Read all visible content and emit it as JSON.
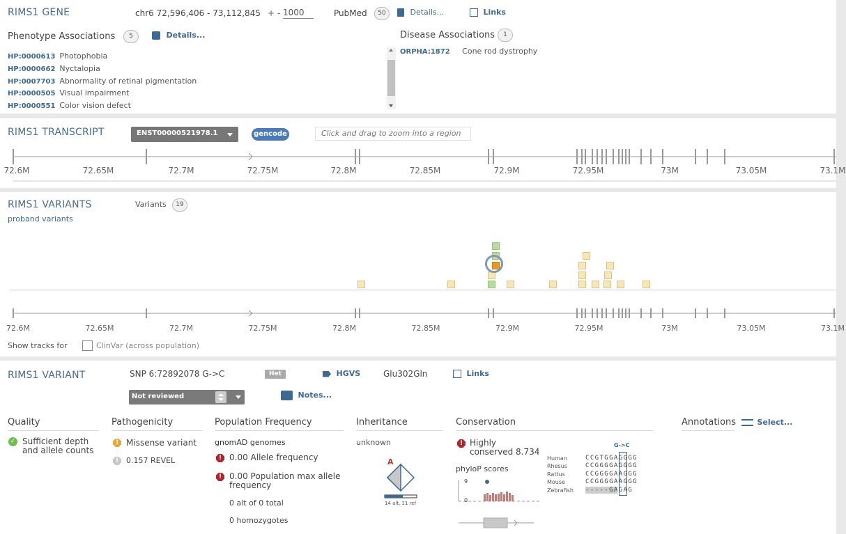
{
  "gene": {
    "title": "RIMS1 GENE",
    "region": "chr6  72,596,406 - 73,112,845",
    "pad_label": "+ -",
    "pad_value": "1000",
    "pubmed_label": "PubMed",
    "pubmed_count": "50",
    "details_label": "Details...",
    "links_label": "Links",
    "phenotype_title": "Phenotype Associations",
    "phenotype_count": "5",
    "phenotype_details": "Details...",
    "phenotypes": [
      {
        "id": "HP:0000613",
        "name": "Photophobia"
      },
      {
        "id": "HP:0000662",
        "name": "Nyctalopia"
      },
      {
        "id": "HP:0007703",
        "name": "Abnormality of retinal pigmentation"
      },
      {
        "id": "HP:0000505",
        "name": "Visual impairment"
      },
      {
        "id": "HP:0000551",
        "name": "Color vision defect"
      }
    ],
    "disease_title": "Disease Associations",
    "disease_count": "1",
    "diseases": [
      {
        "id": "ORPHA:1872",
        "name": "Cone rod dystrophy"
      }
    ]
  },
  "transcript": {
    "title": "RIMS1 TRANSCRIPT",
    "selected": "ENST00000521978.1",
    "source_badge": "gencode",
    "zoom_hint": "Click and drag to zoom into a region",
    "ticks": [
      "72.6M",
      "72.65M",
      "72.7M",
      "72.75M",
      "72.8M",
      "72.85M",
      "72.9M",
      "72.95M",
      "73M",
      "73.05M",
      "73.1M"
    ]
  },
  "variants_panel": {
    "title": "RIMS1 VARIANTS",
    "variants_label": "Variants",
    "variants_count": "19",
    "subtitle": "proband variants",
    "ticks": [
      "72.6M",
      "72.65M",
      "72.7M",
      "72.75M",
      "72.8M",
      "72.85M",
      "72.9M",
      "72.95M",
      "73M",
      "73.05M",
      "73.1M"
    ],
    "show_tracks_label": "Show tracks for",
    "clinvar_label": "ClinVar (across population)",
    "clinvar_checked": false
  },
  "variant": {
    "title": "RIMS1 VARIANT",
    "description": "SNP  6:72892078  G->C",
    "zygosity": "Het",
    "hgvs_label": "HGVS",
    "protein_change": "Glu302Gln",
    "links_label": "Links",
    "review_status": "Not reviewed",
    "notes_label": "Notes...",
    "columns": {
      "quality": "Quality",
      "pathogenicity": "Pathogenicity",
      "population": "Population Frequency",
      "inheritance": "Inheritance",
      "conservation": "Conservation",
      "annotations": "Annotations"
    },
    "annotations_select": "Select...",
    "quality_text_1": "Sufficient depth",
    "quality_text_2": "and allele counts",
    "pathogenicity_1": "Missense variant",
    "pathogenicity_2": "0.157 REVEL",
    "pop_source": "gnomAD genomes",
    "pop_allele_freq": "0.00 Allele frequency",
    "pop_max_1": "0.00 Population max allele",
    "pop_max_2": "frequency",
    "pop_alt_total": "0 alt of 0 total",
    "pop_homozygotes": "0 homozygotes",
    "inheritance_value": "unknown",
    "pedigree_label_letter": "A",
    "pedigree_caption": "14 alt, 11 ref",
    "conservation_1": "Highly",
    "conservation_2": "conserved 8.734",
    "phylop_label": "phyloP scores",
    "phylop_max": "9",
    "phylop_min": "0",
    "align_header": "G->C",
    "alignment": [
      {
        "species": "Human",
        "seq": "CCGTGGAGGGG"
      },
      {
        "species": "Rhesus",
        "seq": "CCGGGGAGGGG"
      },
      {
        "species": "Rattus",
        "seq": "CCGGGGAAGGG"
      },
      {
        "species": "Mouse",
        "seq": "CCGGGGAAGGG"
      },
      {
        "species": "Zebrafish",
        "seq": "-----GAGAG"
      }
    ]
  }
}
